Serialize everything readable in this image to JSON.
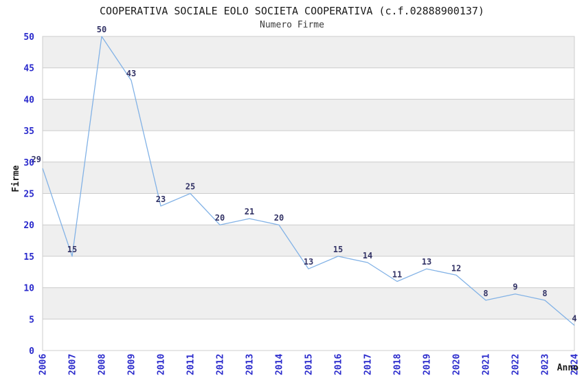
{
  "chart_data": {
    "type": "line",
    "title": "COOPERATIVA SOCIALE EOLO SOCIETA COOPERATIVA (c.f.02888900137)",
    "subtitle": "Numero Firme",
    "xlabel": "Anno",
    "ylabel": "Firme",
    "categories": [
      "2006",
      "2007",
      "2008",
      "2009",
      "2010",
      "2011",
      "2012",
      "2013",
      "2014",
      "2015",
      "2016",
      "2017",
      "2018",
      "2019",
      "2020",
      "2021",
      "2022",
      "2023",
      "2024"
    ],
    "values": [
      29,
      15,
      50,
      43,
      23,
      25,
      20,
      21,
      20,
      13,
      15,
      14,
      11,
      13,
      12,
      8,
      9,
      8,
      4
    ],
    "data_labels": [
      "29",
      "15",
      "50",
      "43",
      "23",
      "25",
      "20",
      "21",
      "20",
      "13",
      "15",
      "14",
      "11",
      "13",
      "12",
      "8",
      "9",
      "8",
      "4"
    ],
    "ylim": [
      0,
      50
    ],
    "ytick_step": 5,
    "ytick_labels": [
      "0",
      "5",
      "10",
      "15",
      "20",
      "25",
      "30",
      "35",
      "40",
      "45",
      "50"
    ],
    "grid": "horizontal-bands",
    "legend": "none",
    "line_color": "#82b2e6",
    "band_color": "#efefef",
    "grid_color": "#cccccc",
    "tick_label_color": "#2a2acc",
    "data_label_color": "#333366",
    "axis_title_color": "#1a1a1a"
  }
}
